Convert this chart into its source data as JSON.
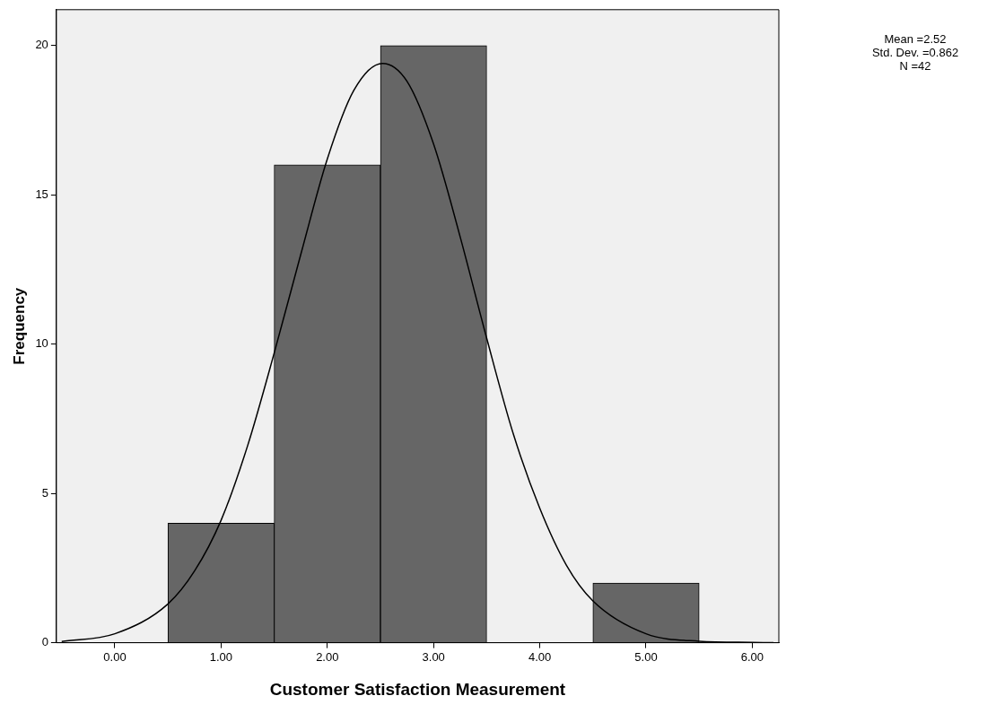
{
  "chart_data": {
    "type": "histogram",
    "xlabel": "Customer Satisfaction Measurement",
    "ylabel": "Frequency",
    "bins": [
      0.5,
      1.5,
      2.5,
      3.5,
      4.5,
      5.5
    ],
    "values": [
      4,
      16,
      20,
      0,
      2
    ],
    "color": "#666666",
    "series": [
      {
        "type": "line",
        "color": "#000000",
        "x": [
          -0.5,
          0,
          0.5,
          0.75,
          1,
          1.25,
          1.5,
          1.75,
          2,
          2.25,
          2.52,
          2.75,
          3,
          3.25,
          3.5,
          3.75,
          4,
          4.25,
          4.5,
          5,
          5.5,
          6,
          6.2
        ],
        "values": [
          0.04,
          0.3,
          1.3,
          2.4,
          4.1,
          6.6,
          9.7,
          13,
          16.2,
          18.5,
          19.4,
          18.8,
          16.7,
          13.6,
          10.2,
          7,
          4.5,
          2.6,
          1.4,
          0.3,
          0.05,
          0.01,
          0
        ]
      }
    ],
    "marker": "none",
    "xlim": [
      -0.55,
      6.25
    ],
    "ylim": [
      0,
      21.2
    ],
    "xticks": [
      {
        "value": 0,
        "label": "0.00"
      },
      {
        "value": 1,
        "label": "1.00"
      },
      {
        "value": 2,
        "label": "2.00"
      },
      {
        "value": 3,
        "label": "3.00"
      },
      {
        "value": 4,
        "label": "4.00"
      },
      {
        "value": 5,
        "label": "5.00"
      },
      {
        "value": 6,
        "label": "6.00"
      }
    ],
    "yticks": [
      0,
      5,
      10,
      15,
      20
    ],
    "grid": false,
    "legend": false,
    "annotations": [
      "Mean =2.52",
      "Std. Dev. =0.862",
      "N =42"
    ]
  }
}
